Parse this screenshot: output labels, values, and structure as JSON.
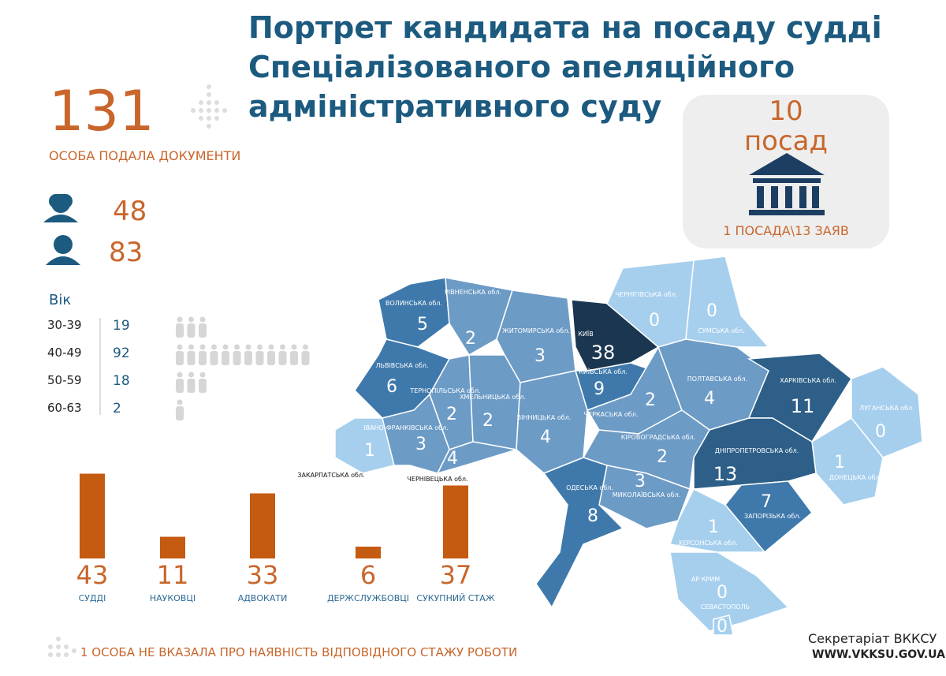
{
  "title": [
    "Портрет кандидата на посаду судді",
    "Спеціалізованого апеляційного",
    "адміністративного суду"
  ],
  "applicants": {
    "count": 131,
    "label": "ОСОБА ПОДАЛА ДОКУМЕНТИ"
  },
  "gender": {
    "female": 48,
    "male": 83
  },
  "age": {
    "title": "Вік",
    "rows": [
      {
        "range": "30-39",
        "count": 19
      },
      {
        "range": "40-49",
        "count": 92
      },
      {
        "range": "50-59",
        "count": 18
      },
      {
        "range": "60-63",
        "count": 2
      }
    ]
  },
  "positions": {
    "count": 10,
    "label": "посад",
    "ratio": "1 ПОСАДА\\13 ЗАЯВ"
  },
  "experience": {
    "categories": [
      "СУДДІ",
      "НАУКОВЦІ",
      "АДВОКАТИ",
      "ДЕРЖСЛУЖБОВЦІ",
      "СУКУПНИЙ СТАЖ"
    ],
    "values": [
      43,
      11,
      33,
      6,
      37
    ],
    "color": "#c55a11"
  },
  "regions": [
    {
      "name": "ВОЛИНСЬКА обл.",
      "value": 5
    },
    {
      "name": "РІВНЕНСЬКА обл.",
      "value": 2
    },
    {
      "name": "ЖИТОМИРСЬКА обл.",
      "value": 3
    },
    {
      "name": "КИЇВ",
      "value": 38
    },
    {
      "name": "КИЇВСЬКА обл.",
      "value": 9
    },
    {
      "name": "ЧЕРНІГІВСЬКА обл.",
      "value": 0
    },
    {
      "name": "СУМСЬКА обл.",
      "value": 0
    },
    {
      "name": "ЛЬВІВСЬКА обл.",
      "value": 6
    },
    {
      "name": "ТЕРНОПІЛЬСЬКА обл.",
      "value": 2
    },
    {
      "name": "ХМЕЛЬНИЦЬКА обл.",
      "value": 2
    },
    {
      "name": "ВІННИЦЬКА обл.",
      "value": 4
    },
    {
      "name": "ЧЕРКАСЬКА обл.",
      "value": 2
    },
    {
      "name": "ПОЛТАВСЬКА обл.",
      "value": 4
    },
    {
      "name": "ХАРКІВСЬКА обл.",
      "value": 11
    },
    {
      "name": "ЛУГАНСЬКА обл.",
      "value": 0
    },
    {
      "name": "ДОНЕЦЬКА обл.",
      "value": 1
    },
    {
      "name": "ДНІПРОПЕТРОВСЬКА обл.",
      "value": 13
    },
    {
      "name": "ЗАПОРІЗЬКА обл.",
      "value": 7
    },
    {
      "name": "КІРОВОГРАДСЬКА обл.",
      "value": 2
    },
    {
      "name": "МИКОЛАЇВСЬКА обл.",
      "value": 3
    },
    {
      "name": "ОДЕСЬКА обл.",
      "value": 8
    },
    {
      "name": "ХЕРСОНСЬКА обл.",
      "value": 1
    },
    {
      "name": "АР КРИМ",
      "value": 0
    },
    {
      "name": "ЗАКАРПАТСЬКА обл.",
      "value": 1
    },
    {
      "name": "ІВАНО-ФРАНКІВСЬКА обл.",
      "value": 3
    },
    {
      "name": "ЧЕРНІВЕЦЬКА обл.",
      "value": 4
    },
    {
      "name": "СЕВАСТОПОЛЬ",
      "value": 0
    }
  ],
  "note": "1 ОСОБА НЕ ВКАЗАЛА ПРО НАЯВНІСТЬ ВІДПОВІДНОГО СТАЖУ РОБОТИ",
  "footer": {
    "org": "Секретаріат ВККСУ",
    "url": "WWW.VKKSU.GOV.UA"
  }
}
